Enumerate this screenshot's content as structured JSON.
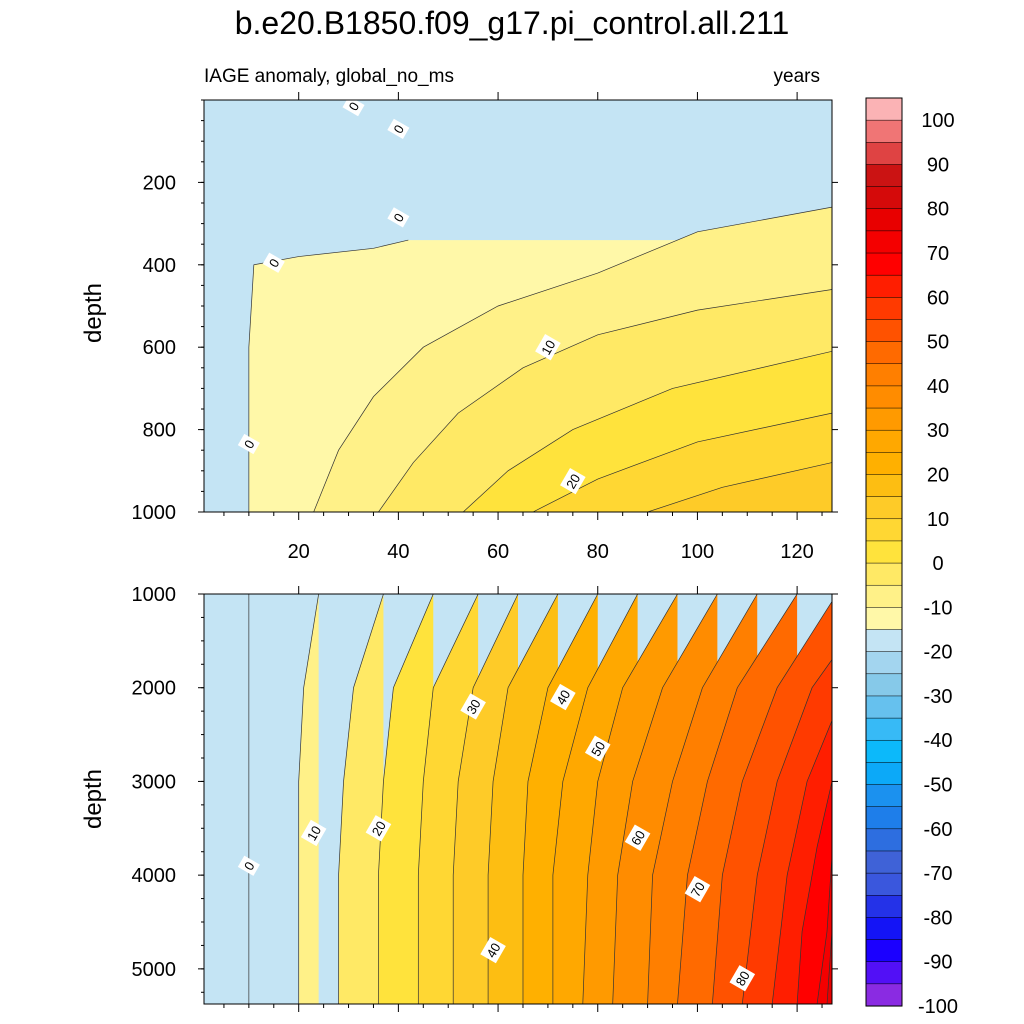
{
  "title": "b.e20.B1850.f09_g17.pi_control.all.211",
  "subtitle_left": "IAGE anomaly, global_no_ms",
  "subtitle_right": "years",
  "chart_data": [
    {
      "type": "heatmap",
      "panel": "upper",
      "ylabel": "depth",
      "xlim": [
        1,
        127
      ],
      "ylim": [
        0,
        1000
      ],
      "y_reversed": true,
      "x_ticks": [
        20,
        40,
        60,
        80,
        100,
        120
      ],
      "y_ticks": [
        200,
        400,
        600,
        800,
        1000
      ],
      "contour_interval": 5,
      "series": [
        {
          "level": 0,
          "points": [
            [
              10,
              1000
            ],
            [
              10,
              600
            ],
            [
              11,
              400
            ],
            [
              20,
              380
            ],
            [
              35,
              360
            ],
            [
              42,
              340
            ]
          ]
        },
        {
          "level": 5,
          "points": [
            [
              23,
              1000
            ],
            [
              28,
              850
            ],
            [
              35,
              720
            ],
            [
              45,
              600
            ],
            [
              60,
              500
            ],
            [
              80,
              420
            ],
            [
              100,
              320
            ],
            [
              127,
              260
            ]
          ]
        },
        {
          "level": 10,
          "points": [
            [
              36,
              1000
            ],
            [
              43,
              880
            ],
            [
              52,
              760
            ],
            [
              65,
              650
            ],
            [
              80,
              570
            ],
            [
              100,
              510
            ],
            [
              127,
              460
            ]
          ]
        },
        {
          "level": 15,
          "points": [
            [
              53,
              1000
            ],
            [
              62,
              900
            ],
            [
              75,
              800
            ],
            [
              95,
              700
            ],
            [
              127,
              610
            ]
          ]
        },
        {
          "level": 20,
          "points": [
            [
              67,
              1000
            ],
            [
              80,
              920
            ],
            [
              100,
              830
            ],
            [
              127,
              760
            ]
          ]
        },
        {
          "level": 25,
          "points": [
            [
              90,
              1000
            ],
            [
              105,
              940
            ],
            [
              127,
              880
            ]
          ]
        }
      ],
      "contour_labels": [
        {
          "text": "0",
          "x": 31,
          "y": 15
        },
        {
          "text": "0",
          "x": 40,
          "y": 70
        },
        {
          "text": "0",
          "x": 40,
          "y": 285
        },
        {
          "text": "0",
          "x": 15,
          "y": 395
        },
        {
          "text": "0",
          "x": 10,
          "y": 835
        },
        {
          "text": "10",
          "x": 70,
          "y": 600
        },
        {
          "text": "20",
          "x": 75,
          "y": 925
        }
      ]
    },
    {
      "type": "heatmap",
      "panel": "lower",
      "ylabel": "depth",
      "xlim": [
        1,
        127
      ],
      "ylim": [
        1000,
        5375
      ],
      "y_reversed": true,
      "y_ticks": [
        1000,
        2000,
        3000,
        4000,
        5000
      ],
      "contour_interval": 5,
      "series": [
        {
          "level": 0,
          "points": [
            [
              10,
              1000
            ],
            [
              10,
              5375
            ]
          ]
        },
        {
          "level": 5,
          "points": [
            [
              24,
              1000
            ],
            [
              21,
              2000
            ],
            [
              20,
              3000
            ],
            [
              20,
              4000
            ],
            [
              20,
              5375
            ]
          ]
        },
        {
          "level": 10,
          "points": [
            [
              37,
              1000
            ],
            [
              31,
              2000
            ],
            [
              29,
              3000
            ],
            [
              28,
              4000
            ],
            [
              28,
              5375
            ]
          ]
        },
        {
          "level": 15,
          "points": [
            [
              47,
              1000
            ],
            [
              39,
              2000
            ],
            [
              37,
              3000
            ],
            [
              36,
              4000
            ],
            [
              36,
              5375
            ]
          ]
        },
        {
          "level": 20,
          "points": [
            [
              56,
              1000
            ],
            [
              47,
              2000
            ],
            [
              45,
              3000
            ],
            [
              44,
              4000
            ],
            [
              44,
              5375
            ]
          ]
        },
        {
          "level": 25,
          "points": [
            [
              64,
              1000
            ],
            [
              55,
              2000
            ],
            [
              52,
              3000
            ],
            [
              51,
              4000
            ],
            [
              51,
              5375
            ]
          ]
        },
        {
          "level": 30,
          "points": [
            [
              72,
              1000
            ],
            [
              62,
              2000
            ],
            [
              59,
              3000
            ],
            [
              58,
              4000
            ],
            [
              58,
              5375
            ]
          ]
        },
        {
          "level": 35,
          "points": [
            [
              80,
              1000
            ],
            [
              70,
              2000
            ],
            [
              66,
              3000
            ],
            [
              65,
              4000
            ],
            [
              65,
              5375
            ]
          ]
        },
        {
          "level": 40,
          "points": [
            [
              88,
              1000
            ],
            [
              78,
              2000
            ],
            [
              73,
              3000
            ],
            [
              71,
              4000
            ],
            [
              71,
              5375
            ]
          ]
        },
        {
          "level": 45,
          "points": [
            [
              96,
              1000
            ],
            [
              85,
              2000
            ],
            [
              80,
              3000
            ],
            [
              78,
              4000
            ],
            [
              77,
              5375
            ]
          ]
        },
        {
          "level": 50,
          "points": [
            [
              104,
              1000
            ],
            [
              93,
              2000
            ],
            [
              87,
              3000
            ],
            [
              84,
              4000
            ],
            [
              83,
              5375
            ]
          ]
        },
        {
          "level": 55,
          "points": [
            [
              112,
              1000
            ],
            [
              101,
              2000
            ],
            [
              95,
              3000
            ],
            [
              91,
              4000
            ],
            [
              90,
              5375
            ]
          ]
        },
        {
          "level": 60,
          "points": [
            [
              120,
              1000
            ],
            [
              108,
              2000
            ],
            [
              102,
              3000
            ],
            [
              98,
              4000
            ],
            [
              96,
              5375
            ]
          ]
        },
        {
          "level": 65,
          "points": [
            [
              127,
              1080
            ],
            [
              116,
              2000
            ],
            [
              109,
              3000
            ],
            [
              105,
              4000
            ],
            [
              103,
              5375
            ]
          ]
        },
        {
          "level": 70,
          "points": [
            [
              127,
              1700
            ],
            [
              123,
              2000
            ],
            [
              116,
              3000
            ],
            [
              112,
              4000
            ],
            [
              109,
              5375
            ]
          ]
        },
        {
          "level": 75,
          "points": [
            [
              127,
              2350
            ],
            [
              122,
              3000
            ],
            [
              118,
              4000
            ],
            [
              115,
              5375
            ]
          ]
        },
        {
          "level": 80,
          "points": [
            [
              127,
              3000
            ],
            [
              124,
              3700
            ],
            [
              121,
              4600
            ],
            [
              120,
              5375
            ]
          ]
        },
        {
          "level": 85,
          "points": [
            [
              127,
              3800
            ],
            [
              126,
              4600
            ],
            [
              124,
              5375
            ]
          ]
        },
        {
          "level": 90,
          "points": [
            [
              127,
              4600
            ],
            [
              126,
              5375
            ]
          ]
        }
      ],
      "contour_labels": [
        {
          "text": "0",
          "x": 10,
          "y": 3900
        },
        {
          "text": "10",
          "x": 23,
          "y": 3550
        },
        {
          "text": "20",
          "x": 36,
          "y": 3500
        },
        {
          "text": "30",
          "x": 55,
          "y": 2200
        },
        {
          "text": "40",
          "x": 73,
          "y": 2100
        },
        {
          "text": "50",
          "x": 80,
          "y": 2650
        },
        {
          "text": "60",
          "x": 88,
          "y": 3600
        },
        {
          "text": "70",
          "x": 100,
          "y": 4150
        },
        {
          "text": "40",
          "x": 59,
          "y": 4800
        },
        {
          "text": "80",
          "x": 109,
          "y": 5100
        }
      ]
    }
  ],
  "colorbar": {
    "tick_labels": [
      "100",
      "90",
      "80",
      "70",
      "60",
      "50",
      "40",
      "30",
      "20",
      "10",
      "0",
      "-10",
      "-20",
      "-30",
      "-40",
      "-50",
      "-60",
      "-70",
      "-80",
      "-90",
      "-100"
    ],
    "colors_top_to_bottom": [
      "#fbb3b5",
      "#f07575",
      "#df4343",
      "#cb1313",
      "#d50a0a",
      "#e80000",
      "#f40000",
      "#ff0000",
      "#ff1e00",
      "#ff3a00",
      "#ff5200",
      "#ff6a00",
      "#ff7f00",
      "#ff8c00",
      "#ff9a00",
      "#ffa800",
      "#ffb000",
      "#fdbe12",
      "#fecb28",
      "#ffd733",
      "#ffe33c",
      "#ffe965",
      "#fff188",
      "#fff8a8",
      "#c4e4f4",
      "#a3d5ef",
      "#86c9e9",
      "#66c1ee",
      "#37baf6",
      "#0cb9fa",
      "#0ca9f8",
      "#1b91ef",
      "#1e7eea",
      "#2d6ee0",
      "#3f62d7",
      "#3a57dd",
      "#2432e8",
      "#1414f6",
      "#1b00ff",
      "#5210f6",
      "#8a2be2"
    ]
  }
}
